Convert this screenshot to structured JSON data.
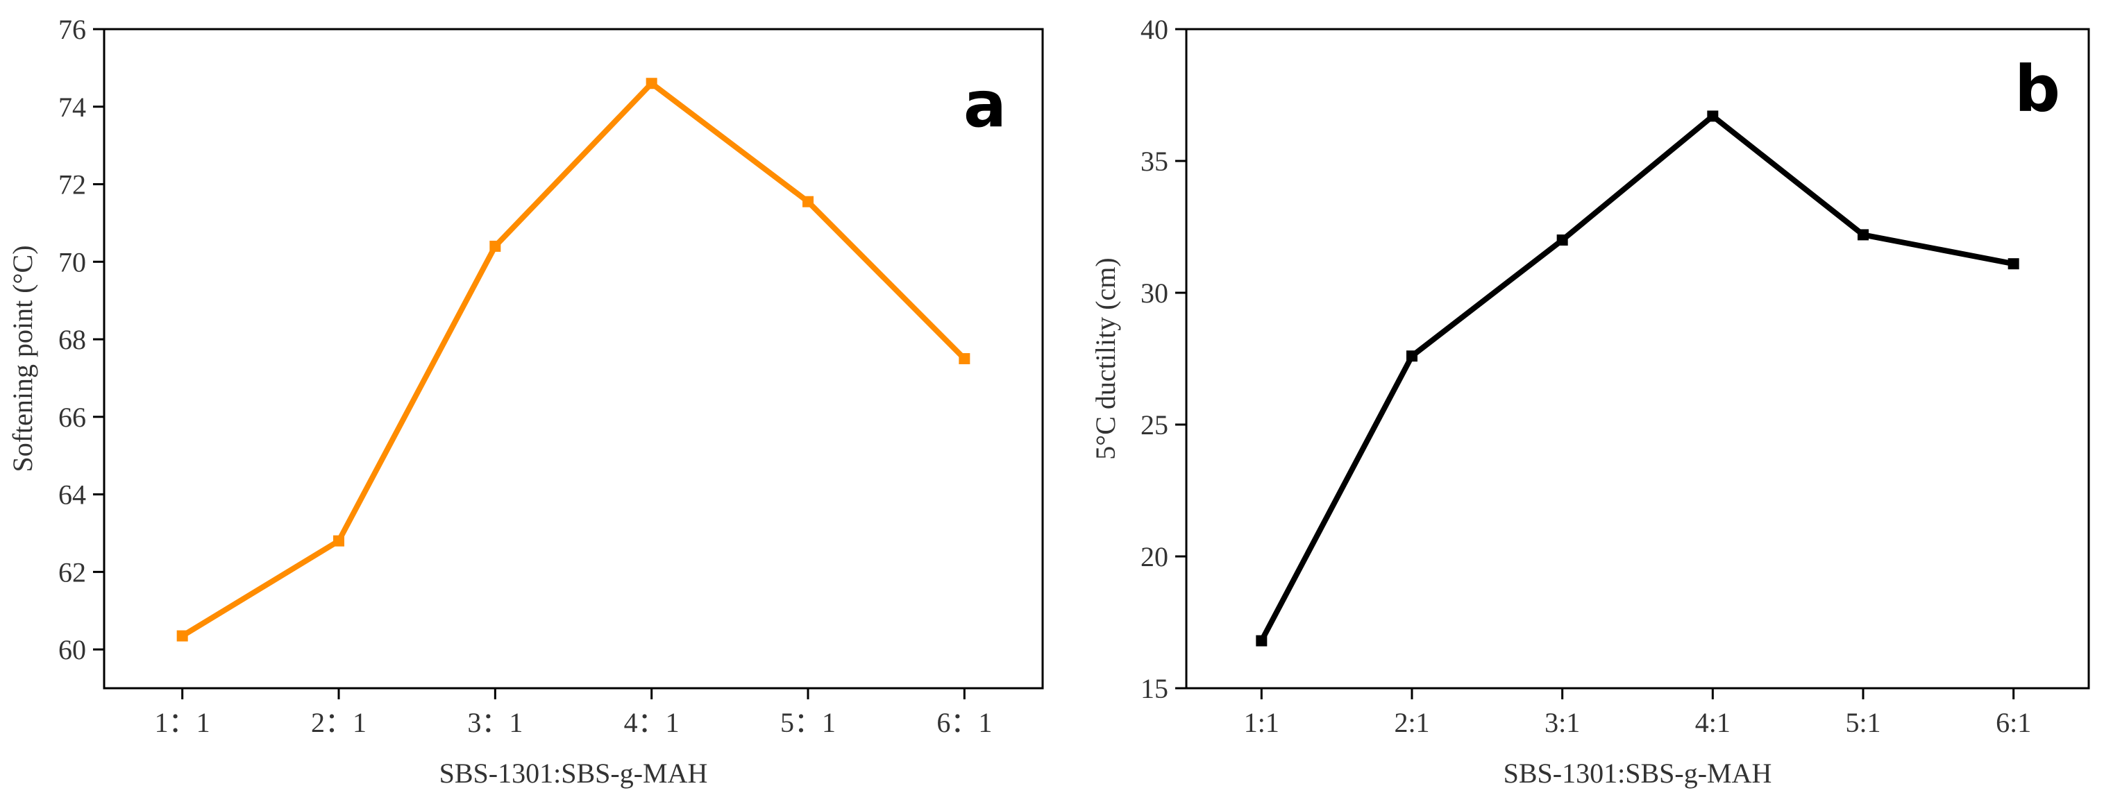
{
  "chart_data": [
    {
      "type": "line",
      "panel_label": "a",
      "title": "",
      "categories": [
        "1：1",
        "2：1",
        "3：1",
        "4：1",
        "5：1",
        "6：1"
      ],
      "values": [
        60.35,
        62.8,
        70.4,
        74.6,
        71.55,
        67.5
      ],
      "xlabel": "SBS-1301:SBS-g-MAH",
      "ylabel": "Softening point (°C)",
      "ylim": [
        59,
        76
      ],
      "yticks": [
        60,
        62,
        64,
        66,
        68,
        70,
        72,
        74,
        76
      ],
      "color": "#FF8C00",
      "grid": false,
      "legend": "none"
    },
    {
      "type": "line",
      "panel_label": "b",
      "title": "",
      "categories": [
        "1:1",
        "2:1",
        "3:1",
        "4:1",
        "5:1",
        "6:1"
      ],
      "values": [
        16.8,
        27.6,
        32.0,
        36.7,
        32.2,
        31.1
      ],
      "xlabel": "SBS-1301:SBS-g-MAH",
      "ylabel": "5°C ductility (cm)",
      "ylim": [
        15,
        40
      ],
      "yticks": [
        15,
        20,
        25,
        30,
        35,
        40
      ],
      "color": "#000000",
      "grid": false,
      "legend": "none"
    }
  ]
}
